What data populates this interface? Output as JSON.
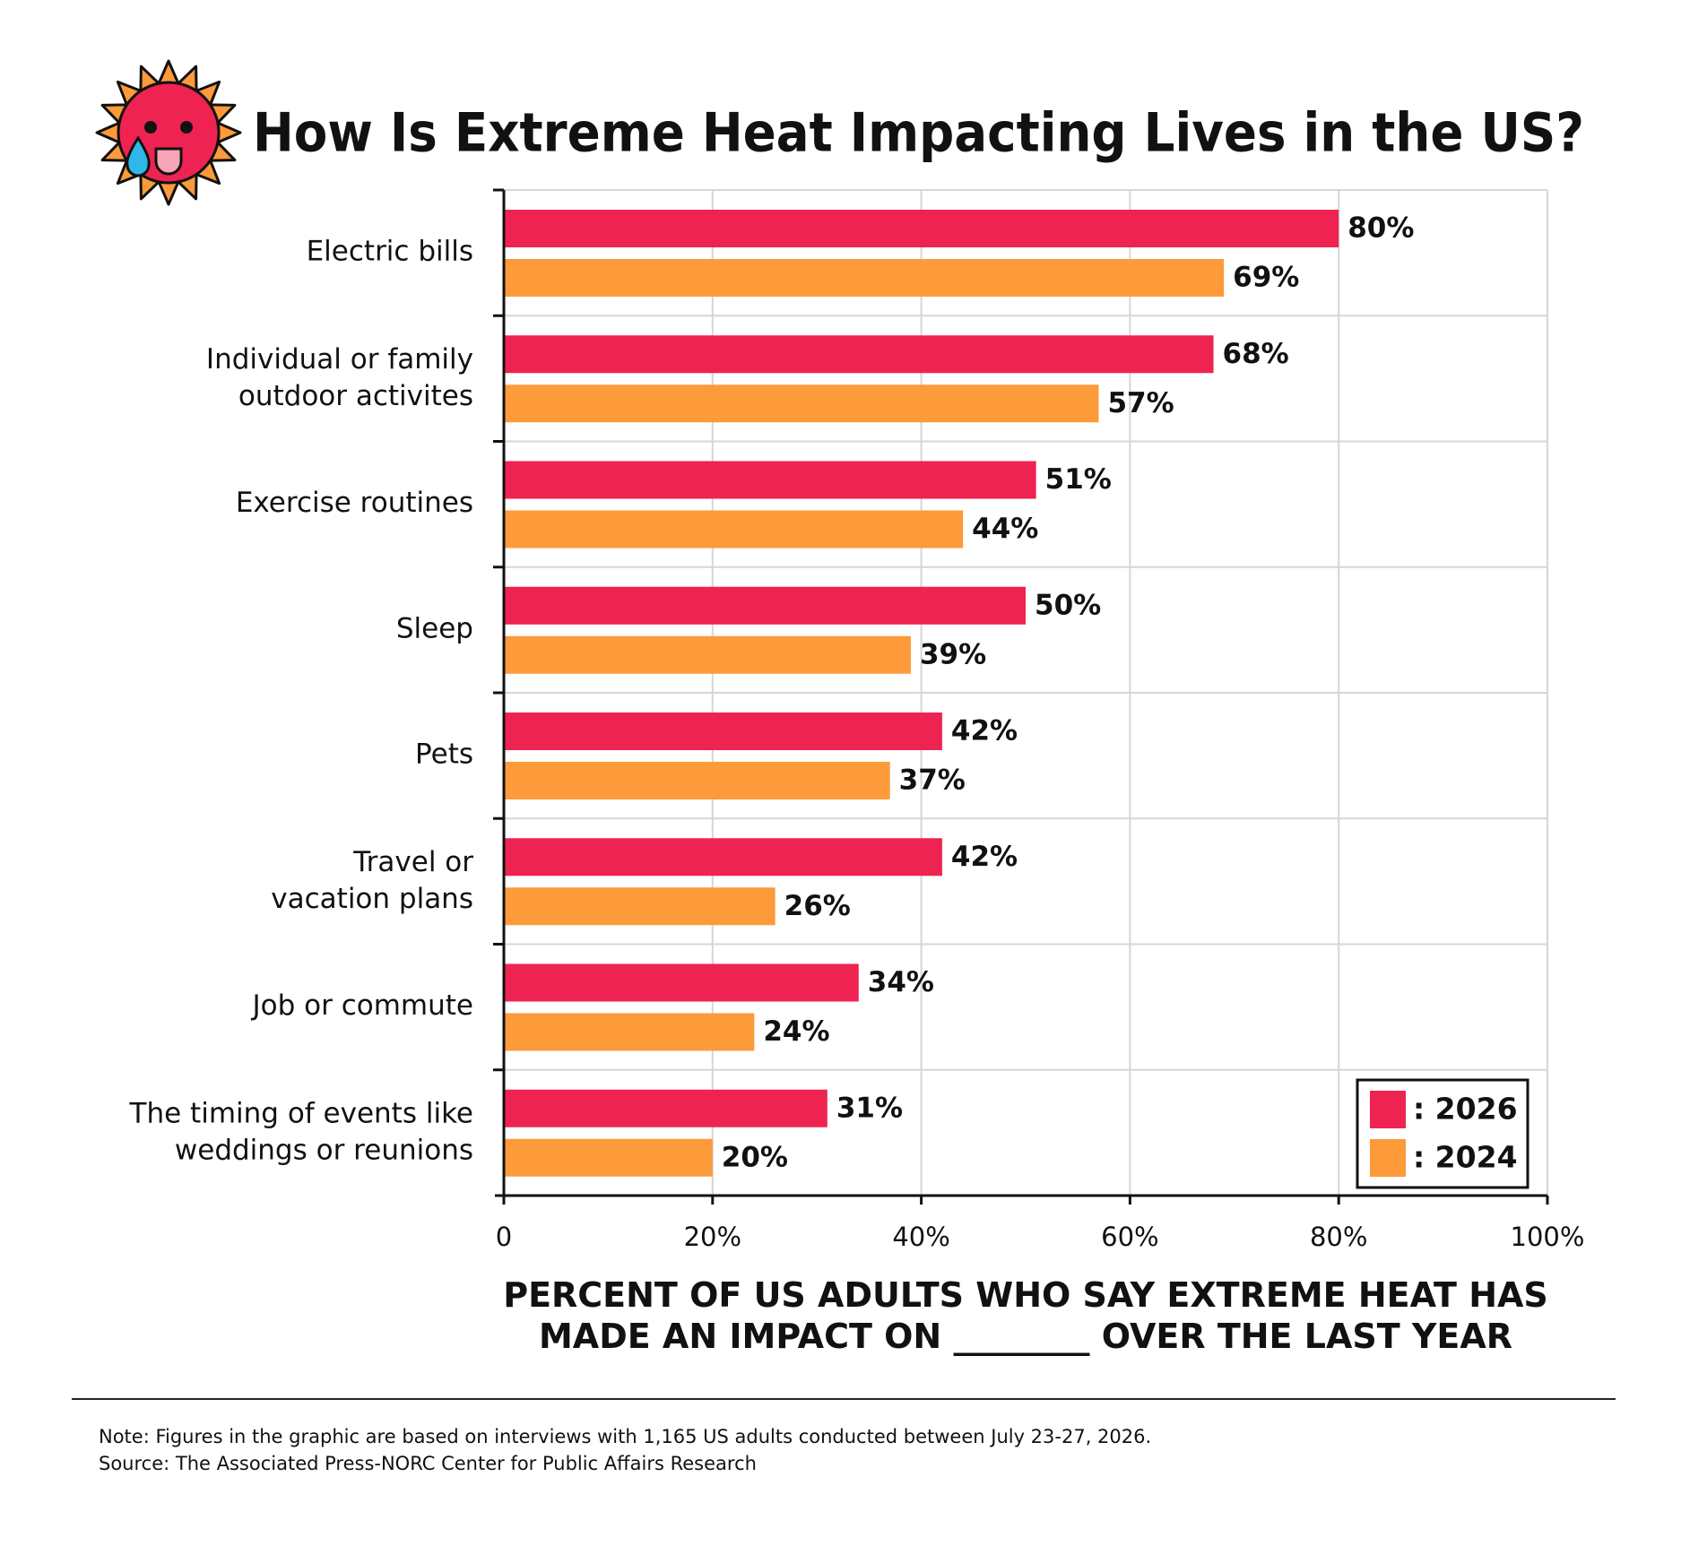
{
  "chart_data": {
    "type": "bar",
    "orientation": "horizontal",
    "title": "How Is Extreme Heat Impacting Lives in the US?",
    "categories": [
      "Electric bills",
      "Individual or family\noutdoor activites",
      "Exercise routines",
      "Sleep",
      "Pets",
      "Travel or\nvacation plans",
      "Job or commute",
      "The timing of events like\nweddings or reunions"
    ],
    "series": [
      {
        "name": ": 2026",
        "color": "#ef2351",
        "values": [
          80,
          68,
          51,
          50,
          42,
          42,
          34,
          31
        ],
        "value_labels": [
          "80%",
          "68%",
          "51%",
          "50%",
          "42%",
          "42%",
          "34%",
          "31%"
        ]
      },
      {
        "name": ": 2024",
        "color": "#fd9a3a",
        "values": [
          69,
          57,
          44,
          39,
          37,
          26,
          24,
          20
        ],
        "value_labels": [
          "69%",
          "57%",
          "44%",
          "39%",
          "37%",
          "26%",
          "24%",
          "20%"
        ]
      }
    ],
    "xlim": [
      0,
      100
    ],
    "xticks": [
      0,
      {
        "value": 20,
        "label": "20%"
      },
      {
        "value": 40,
        "label": "40%"
      },
      {
        "value": 60,
        "label": "60%"
      },
      {
        "value": 80,
        "label": "80%"
      },
      {
        "value": 100,
        "label": "100%"
      }
    ],
    "xlabel": "PERCENT OF US ADULTS WHO SAY EXTREME HEAT HAS\nMADE AN IMPACT ON ________ OVER THE LAST YEAR",
    "grid": true,
    "legend_position": "lower right",
    "note": "Note: Figures in the graphic are based on interviews with 1,165 US adults conducted between July 23-27, 2026.",
    "source": "Source: The Associated Press-NORC Center for Public Affairs Research"
  }
}
